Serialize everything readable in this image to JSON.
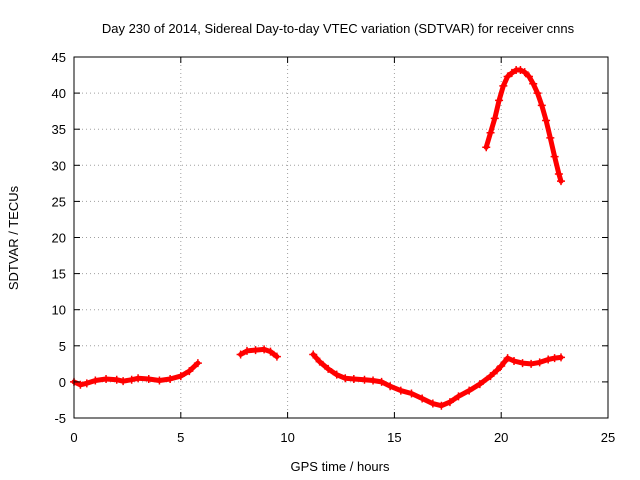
{
  "chart_data": {
    "type": "scatter",
    "title": "Day 230 of 2014, Sidereal Day-to-day VTEC variation (SDTVAR) for receiver cnns",
    "xlabel": "GPS time / hours",
    "ylabel": "SDTVAR / TECUs",
    "xlim": [
      0,
      25
    ],
    "ylim": [
      -5,
      45
    ],
    "xticks": [
      0,
      5,
      10,
      15,
      20,
      25
    ],
    "yticks": [
      -5,
      0,
      5,
      10,
      15,
      20,
      25,
      30,
      35,
      40,
      45
    ],
    "grid": true,
    "marker": "plus",
    "color": "#ff0000",
    "series": [
      {
        "name": "segment-1",
        "points": [
          [
            0.0,
            0.0
          ],
          [
            0.3,
            -0.4
          ],
          [
            0.6,
            -0.2
          ],
          [
            1.0,
            0.2
          ],
          [
            1.5,
            0.4
          ],
          [
            2.0,
            0.3
          ],
          [
            2.3,
            0.1
          ],
          [
            2.7,
            0.3
          ],
          [
            3.0,
            0.5
          ],
          [
            3.5,
            0.4
          ],
          [
            4.0,
            0.2
          ],
          [
            4.5,
            0.4
          ],
          [
            5.0,
            0.8
          ],
          [
            5.4,
            1.5
          ],
          [
            5.8,
            2.6
          ]
        ]
      },
      {
        "name": "segment-2",
        "points": [
          [
            7.8,
            3.8
          ],
          [
            8.1,
            4.3
          ],
          [
            8.5,
            4.4
          ],
          [
            8.9,
            4.5
          ],
          [
            9.2,
            4.2
          ],
          [
            9.5,
            3.5
          ]
        ]
      },
      {
        "name": "segment-3",
        "points": [
          [
            11.2,
            3.8
          ],
          [
            11.5,
            2.8
          ],
          [
            11.9,
            1.8
          ],
          [
            12.3,
            1.0
          ],
          [
            12.7,
            0.5
          ],
          [
            13.1,
            0.4
          ],
          [
            13.6,
            0.3
          ],
          [
            14.0,
            0.2
          ],
          [
            14.4,
            0.0
          ],
          [
            14.8,
            -0.6
          ],
          [
            15.3,
            -1.2
          ],
          [
            15.8,
            -1.6
          ],
          [
            16.3,
            -2.3
          ],
          [
            16.8,
            -3.0
          ],
          [
            17.2,
            -3.3
          ],
          [
            17.6,
            -2.8
          ],
          [
            18.0,
            -2.0
          ],
          [
            18.5,
            -1.2
          ],
          [
            19.0,
            -0.3
          ],
          [
            19.5,
            0.8
          ],
          [
            19.8,
            1.6
          ],
          [
            20.0,
            2.2
          ],
          [
            20.3,
            3.3
          ],
          [
            20.6,
            2.9
          ],
          [
            21.0,
            2.6
          ],
          [
            21.4,
            2.5
          ],
          [
            21.8,
            2.7
          ],
          [
            22.2,
            3.1
          ],
          [
            22.5,
            3.3
          ],
          [
            22.8,
            3.4
          ]
        ]
      },
      {
        "name": "segment-4",
        "points": [
          [
            19.3,
            32.5
          ],
          [
            19.5,
            34.5
          ],
          [
            19.7,
            36.5
          ],
          [
            19.9,
            39.0
          ],
          [
            20.1,
            41.0
          ],
          [
            20.3,
            42.3
          ],
          [
            20.5,
            42.8
          ],
          [
            20.7,
            43.2
          ],
          [
            20.9,
            43.2
          ],
          [
            21.1,
            42.9
          ],
          [
            21.3,
            42.3
          ],
          [
            21.5,
            41.3
          ],
          [
            21.7,
            40.0
          ],
          [
            21.9,
            38.3
          ],
          [
            22.1,
            36.2
          ],
          [
            22.3,
            33.8
          ],
          [
            22.5,
            31.2
          ],
          [
            22.7,
            28.8
          ],
          [
            22.8,
            27.8
          ]
        ]
      }
    ]
  }
}
